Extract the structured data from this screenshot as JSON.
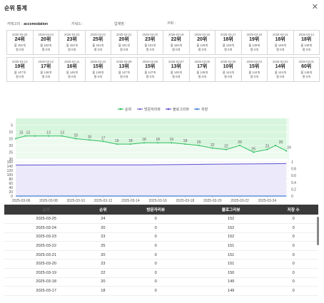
{
  "dialog": {
    "title": "순위 통계",
    "close_icon": "close-icon"
  },
  "meta": {
    "category_label": "카테고리 :",
    "category_value": "accomodation",
    "keyword_label": "키워드 :",
    "keyword_value": "",
    "company_label": "업체명 :",
    "company_value": "",
    "pid_label": "PID :",
    "pid_value": ""
  },
  "cards_row1": [
    {
      "date": "2025-03-25",
      "rank": "24위",
      "l1": "블 152개",
      "l2": "평 0개"
    },
    {
      "date": "2025-03-24",
      "rank": "20위",
      "l1": "블 152개",
      "l2": "평 0개"
    },
    {
      "date": "2025-03-23",
      "rank": "23위",
      "l1": "블 152개",
      "l2": "평 0개"
    },
    {
      "date": "2025-03-22",
      "rank": "25위",
      "l1": "블 151개",
      "l2": "평 0개"
    },
    {
      "date": "2025-03-21",
      "rank": "20위",
      "l1": "블 151개",
      "l2": "평 0개"
    },
    {
      "date": "2025-03-20",
      "rank": "23위",
      "l1": "블 151개",
      "l2": "평 0개"
    },
    {
      "date": "2025-03-19",
      "rank": "22위",
      "l1": "블 150개",
      "l2": "평 0개"
    },
    {
      "date": "2025-03-18",
      "rank": "20위",
      "l1": "블 149개",
      "l2": "평 0개"
    },
    {
      "date": "2025-03-17",
      "rank": "18위",
      "l1": "블 149개",
      "l2": "평 0개"
    },
    {
      "date": "2025-03-16",
      "rank": "19위",
      "l1": "블 149개",
      "l2": "평 0개"
    },
    {
      "date": "2025-03-15",
      "rank": "18위",
      "l1": "블 149개",
      "l2": "평 0개"
    },
    {
      "date": "2025-03-14",
      "rank": "18위",
      "l1": "블 149개",
      "l2": "평 0개"
    }
  ],
  "cards_row2": [
    {
      "date": "2025-03-13",
      "rank": "19위",
      "l1": "블 147개",
      "l2": "평 0개"
    },
    {
      "date": "2025-03-12",
      "rank": "17위",
      "l1": "블 146개",
      "l2": "평 0개"
    },
    {
      "date": "2025-03-11",
      "rank": "16위",
      "l1": "블 146개",
      "l2": "평 0개"
    },
    {
      "date": "2025-03-10",
      "rank": "15위",
      "l1": "블 146개",
      "l2": "평 0개"
    },
    {
      "date": "2025-03-09",
      "rank": "13위",
      "l1": "블 147개",
      "l2": "평 0개"
    },
    {
      "date": "2025-03-08",
      "rank": "15위",
      "l1": "블 147개",
      "l2": "평 0개"
    },
    {
      "date": "2025-03-07",
      "rank": "13위",
      "l1": "블 145개",
      "l2": "평 0개"
    },
    {
      "date": "2025-03-06",
      "rank": "17위",
      "l1": "블 145개",
      "l2": "평 0개"
    },
    {
      "date": "2025-03-05",
      "rank": "10위",
      "l1": "블 144개",
      "l2": "평 0개"
    },
    {
      "date": "2025-03-04",
      "rank": "15위",
      "l1": "블 144개",
      "l2": "평 0개"
    },
    {
      "date": "2025-03-03",
      "rank": "14위",
      "l1": "블 144개",
      "l2": "평 0개"
    },
    {
      "date": "2025-03-01",
      "rank": "60위",
      "l1": "블 145개",
      "l2": "평 0개"
    }
  ],
  "chart_data": {
    "type": "line",
    "legend": [
      "순위",
      "방문자리뷰",
      "블로그리뷰",
      "저장"
    ],
    "colors": {
      "rank": "#2fbf5f",
      "visitor": "#7b68c8",
      "blog": "#5a4fcf",
      "save": "#3f7fd0",
      "rank_fill": "#d8f5de"
    },
    "x_ticks": [
      "2025-03-06",
      "2025-03-08",
      "2025-03-10",
      "2025-03-12",
      "2025-03-14",
      "2025-03-16",
      "2025-03-18",
      "2025-03-20",
      "2025-03-22",
      "2025-03-24"
    ],
    "rank_axis": {
      "ticks": [
        "5",
        "10",
        "15",
        "20",
        "25",
        "30"
      ]
    },
    "left_axis": {
      "ticks": [
        "0",
        "20",
        "40",
        "60",
        "80",
        "100",
        "120",
        "140",
        "160"
      ]
    },
    "right_axis": {
      "ticks": [
        "0",
        "0.2",
        "0.4",
        "0.6",
        "0.8",
        "1"
      ]
    },
    "rank_labels": [
      {
        "day": 6,
        "v": "15"
      },
      {
        "day": 6.5,
        "v": "13"
      },
      {
        "day": 8,
        "v": "13"
      },
      {
        "day": 9,
        "v": "13"
      },
      {
        "day": 10,
        "v": "15"
      },
      {
        "day": 11,
        "v": "16"
      },
      {
        "day": 12,
        "v": "17"
      },
      {
        "day": 13,
        "v": "19"
      },
      {
        "day": 14,
        "v": "18"
      },
      {
        "day": 15,
        "v": "18"
      },
      {
        "day": 16,
        "v": "18"
      },
      {
        "day": 17,
        "v": "19"
      },
      {
        "day": 18,
        "v": "18"
      },
      {
        "day": 19,
        "v": "20"
      },
      {
        "day": 20,
        "v": "22"
      },
      {
        "day": 21,
        "v": "22"
      },
      {
        "day": 22,
        "v": "20"
      },
      {
        "day": 23,
        "v": "25"
      },
      {
        "day": 24,
        "v": "23"
      },
      {
        "day": 25,
        "v": "20"
      },
      {
        "day": 25.6,
        "v": "24"
      }
    ],
    "series": {
      "rank": [
        [
          5.6,
          15
        ],
        [
          6.3,
          13
        ],
        [
          7,
          13
        ],
        [
          8,
          13
        ],
        [
          9,
          13
        ],
        [
          10,
          15
        ],
        [
          11,
          16
        ],
        [
          12,
          17
        ],
        [
          13,
          19
        ],
        [
          14,
          19
        ],
        [
          15,
          18
        ],
        [
          16,
          18
        ],
        [
          17,
          18
        ],
        [
          18,
          19
        ],
        [
          19,
          20
        ],
        [
          20,
          22
        ],
        [
          21,
          23
        ],
        [
          22,
          20
        ],
        [
          23,
          25
        ],
        [
          24,
          23
        ],
        [
          24.6,
          20
        ],
        [
          25.4,
          24
        ]
      ],
      "blog": [
        [
          5.6,
          145
        ],
        [
          10,
          146
        ],
        [
          15,
          146
        ],
        [
          20,
          149
        ],
        [
          25.4,
          152
        ]
      ],
      "visitor": [
        [
          5.6,
          0
        ],
        [
          25.4,
          0
        ]
      ]
    },
    "x_range": [
      5.6,
      25.6
    ],
    "rank_range": [
      0,
      30
    ],
    "left_range": [
      0,
      160
    ]
  },
  "table": {
    "headers": [
      "날짜",
      "순위",
      "방문자리뷰",
      "블로그리뷰",
      "저장 수"
    ],
    "rows": [
      [
        "2025-03-25",
        "24",
        "0",
        "152",
        "0"
      ],
      [
        "2025-03-24",
        "20",
        "0",
        "152",
        "0"
      ],
      [
        "2025-03-23",
        "23",
        "0",
        "152",
        "0"
      ],
      [
        "2025-03-22",
        "25",
        "0",
        "151",
        "0"
      ],
      [
        "2025-03-21",
        "20",
        "0",
        "151",
        "0"
      ],
      [
        "2025-03-20",
        "23",
        "0",
        "151",
        "0"
      ],
      [
        "2025-03-19",
        "22",
        "0",
        "150",
        "0"
      ],
      [
        "2025-03-18",
        "20",
        "0",
        "149",
        "0"
      ],
      [
        "2025-03-17",
        "18",
        "0",
        "149",
        "0"
      ]
    ]
  }
}
